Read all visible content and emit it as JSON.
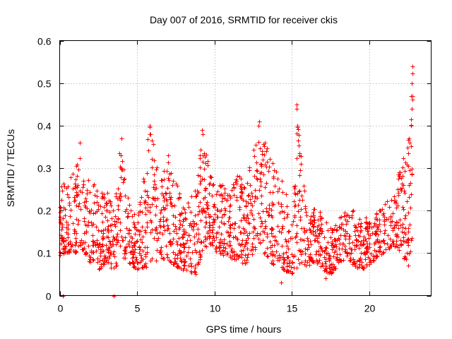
{
  "chart_data": {
    "type": "scatter",
    "title": "Day 007 of 2016, SRMTID for receiver ckis",
    "xlabel": "GPS time / hours",
    "ylabel": "SRMTID / TECUs",
    "xlim": [
      0,
      24
    ],
    "ylim": [
      0,
      0.6
    ],
    "x_ticks": [
      0,
      5,
      10,
      15,
      20
    ],
    "x_tick_labels": [
      "0",
      "5",
      "10",
      "15",
      "20"
    ],
    "y_ticks": [
      0,
      0.1,
      0.2,
      0.3,
      0.4,
      0.5,
      0.6
    ],
    "y_tick_labels": [
      "0",
      "0.1",
      "0.2",
      "0.3",
      "0.4",
      "0.5",
      "0.6"
    ],
    "grid": true,
    "marker": "+",
    "color": "#ff0000",
    "envelope": {
      "description": "approximate local range of SRMTID values read from the plot",
      "hours": [
        0,
        0.5,
        1,
        1.3,
        1.8,
        2.5,
        3,
        3.5,
        3.9,
        4.3,
        5,
        5.8,
        6.5,
        7,
        7.5,
        8,
        8.7,
        9.2,
        9.7,
        10.2,
        11,
        11.5,
        12,
        12.5,
        12.9,
        13.5,
        14,
        14.5,
        15,
        15.4,
        16,
        16.5,
        17,
        17.5,
        18,
        18.5,
        19,
        19.5,
        20,
        20.5,
        21,
        21.5,
        22,
        22.4,
        22.8
      ],
      "low": [
        0.09,
        0.1,
        0.1,
        0.12,
        0.08,
        0.06,
        0.08,
        0.05,
        0.1,
        0.08,
        0.06,
        0.07,
        0.09,
        0.08,
        0.07,
        0.06,
        0.05,
        0.1,
        0.12,
        0.1,
        0.09,
        0.08,
        0.07,
        0.1,
        0.12,
        0.08,
        0.07,
        0.06,
        0.05,
        0.07,
        0.07,
        0.08,
        0.06,
        0.05,
        0.07,
        0.09,
        0.07,
        0.06,
        0.07,
        0.09,
        0.1,
        0.12,
        0.1,
        0.08,
        0.12
      ],
      "high": [
        0.26,
        0.27,
        0.31,
        0.36,
        0.28,
        0.26,
        0.25,
        0.2,
        0.37,
        0.25,
        0.17,
        0.4,
        0.28,
        0.34,
        0.27,
        0.22,
        0.24,
        0.38,
        0.3,
        0.27,
        0.25,
        0.3,
        0.26,
        0.35,
        0.41,
        0.34,
        0.3,
        0.26,
        0.22,
        0.45,
        0.19,
        0.21,
        0.19,
        0.16,
        0.18,
        0.21,
        0.2,
        0.19,
        0.18,
        0.2,
        0.22,
        0.26,
        0.3,
        0.36,
        0.54
      ]
    },
    "spikes": [
      {
        "x": 3.5,
        "y": 0.0
      },
      {
        "x": 0.2,
        "y": 0.0
      },
      {
        "x": 14.3,
        "y": 0.03
      },
      {
        "x": 15.3,
        "y": 0.44
      },
      {
        "x": 15.3,
        "y": 0.45
      },
      {
        "x": 15.35,
        "y": 0.4
      },
      {
        "x": 22.8,
        "y": 0.54
      },
      {
        "x": 22.75,
        "y": 0.5
      },
      {
        "x": 22.8,
        "y": 0.47
      },
      {
        "x": 22.75,
        "y": 0.44
      },
      {
        "x": 22.7,
        "y": 0.4
      },
      {
        "x": 22.6,
        "y": 0.36
      },
      {
        "x": 5.8,
        "y": 0.4
      },
      {
        "x": 5.85,
        "y": 0.38
      },
      {
        "x": 12.9,
        "y": 0.41
      },
      {
        "x": 12.85,
        "y": 0.4
      },
      {
        "x": 9.2,
        "y": 0.39
      },
      {
        "x": 9.25,
        "y": 0.38
      },
      {
        "x": 4.0,
        "y": 0.37
      },
      {
        "x": 1.3,
        "y": 0.36
      },
      {
        "x": 22.5,
        "y": 0.07
      },
      {
        "x": 17.2,
        "y": 0.04
      },
      {
        "x": 8.8,
        "y": 0.05
      }
    ],
    "points_per_hour": 80
  }
}
